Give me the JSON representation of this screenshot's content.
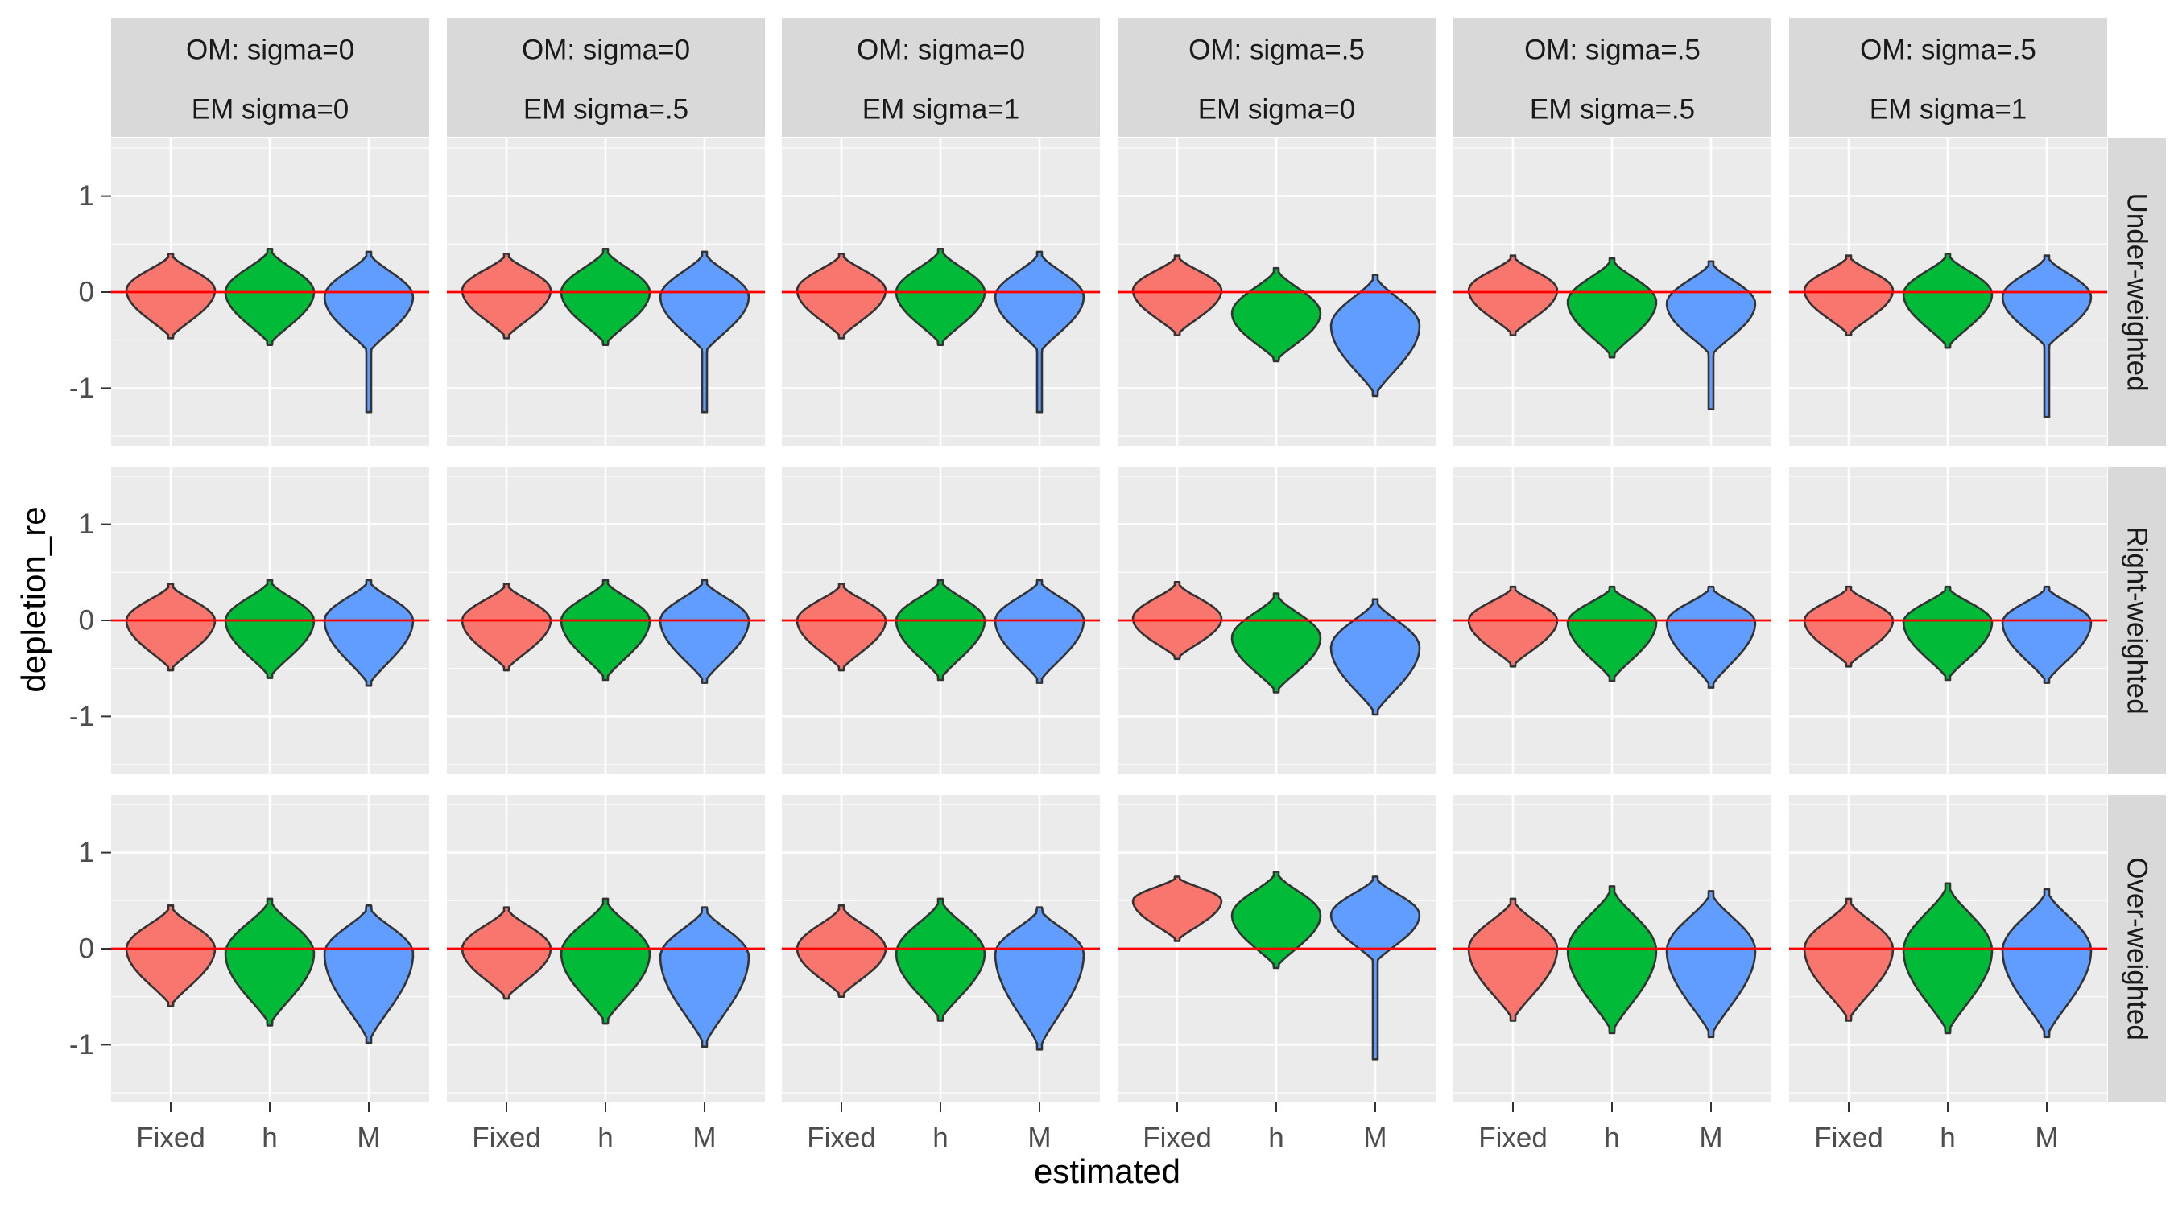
{
  "chart_data": {
    "type": "violin",
    "xlabel": "estimated",
    "ylabel": "depletion_re",
    "ylim": [
      -1.6,
      1.6
    ],
    "yticks": [
      -1,
      0,
      1
    ],
    "categories": [
      "Fixed",
      "h",
      "M"
    ],
    "reference_line": 0,
    "grid": true,
    "legend": "none",
    "colors": {
      "Fixed": "#F8766D",
      "h": "#00BA38",
      "M": "#619CFF",
      "reference": "#FF0000",
      "panel_bg": "#EBEBEB",
      "strip_bg": "#D9D9D9"
    },
    "col_facets": [
      {
        "om": "OM: sigma=0",
        "em": "EM sigma=0"
      },
      {
        "om": "OM: sigma=0",
        "em": "EM sigma=.5"
      },
      {
        "om": "OM: sigma=0",
        "em": "EM sigma=1"
      },
      {
        "om": "OM: sigma=.5",
        "em": "EM sigma=0"
      },
      {
        "om": "OM: sigma=.5",
        "em": "EM sigma=.5"
      },
      {
        "om": "OM: sigma=.5",
        "em": "EM sigma=1"
      }
    ],
    "row_facets": [
      "Under-weighted",
      "Right-weighted",
      "Over-weighted"
    ],
    "violins": [
      [
        [
          {
            "min": -0.48,
            "max": 0.4,
            "center": 0.02,
            "tail": false
          },
          {
            "min": -0.55,
            "max": 0.45,
            "center": 0.0,
            "tail": false
          },
          {
            "min": -1.25,
            "max": 0.42,
            "center": -0.05,
            "tail": true
          }
        ],
        [
          {
            "min": -0.48,
            "max": 0.4,
            "center": 0.02,
            "tail": false
          },
          {
            "min": -0.55,
            "max": 0.45,
            "center": 0.0,
            "tail": false
          },
          {
            "min": -1.25,
            "max": 0.42,
            "center": -0.05,
            "tail": true
          }
        ],
        [
          {
            "min": -0.48,
            "max": 0.4,
            "center": 0.02,
            "tail": false
          },
          {
            "min": -0.55,
            "max": 0.45,
            "center": 0.0,
            "tail": false
          },
          {
            "min": -1.25,
            "max": 0.42,
            "center": -0.05,
            "tail": true
          }
        ],
        [
          {
            "min": -0.45,
            "max": 0.38,
            "center": 0.02,
            "tail": false
          },
          {
            "min": -0.72,
            "max": 0.25,
            "center": -0.22,
            "tail": false
          },
          {
            "min": -1.08,
            "max": 0.18,
            "center": -0.35,
            "tail": false
          }
        ],
        [
          {
            "min": -0.45,
            "max": 0.38,
            "center": 0.02,
            "tail": false
          },
          {
            "min": -0.68,
            "max": 0.35,
            "center": -0.1,
            "tail": false
          },
          {
            "min": -1.22,
            "max": 0.32,
            "center": -0.12,
            "tail": true
          }
        ],
        [
          {
            "min": -0.45,
            "max": 0.38,
            "center": 0.02,
            "tail": false
          },
          {
            "min": -0.58,
            "max": 0.4,
            "center": -0.02,
            "tail": false
          },
          {
            "min": -1.3,
            "max": 0.38,
            "center": -0.05,
            "tail": true
          }
        ]
      ],
      [
        [
          {
            "min": -0.52,
            "max": 0.38,
            "center": 0.0,
            "tail": false
          },
          {
            "min": -0.6,
            "max": 0.42,
            "center": 0.0,
            "tail": false
          },
          {
            "min": -0.68,
            "max": 0.42,
            "center": 0.0,
            "tail": false
          }
        ],
        [
          {
            "min": -0.52,
            "max": 0.38,
            "center": 0.0,
            "tail": false
          },
          {
            "min": -0.62,
            "max": 0.42,
            "center": 0.0,
            "tail": false
          },
          {
            "min": -0.65,
            "max": 0.42,
            "center": 0.0,
            "tail": false
          }
        ],
        [
          {
            "min": -0.52,
            "max": 0.38,
            "center": 0.0,
            "tail": false
          },
          {
            "min": -0.62,
            "max": 0.42,
            "center": 0.0,
            "tail": false
          },
          {
            "min": -0.65,
            "max": 0.42,
            "center": 0.0,
            "tail": false
          }
        ],
        [
          {
            "min": -0.4,
            "max": 0.4,
            "center": 0.02,
            "tail": false
          },
          {
            "min": -0.75,
            "max": 0.28,
            "center": -0.18,
            "tail": false
          },
          {
            "min": -0.98,
            "max": 0.22,
            "center": -0.28,
            "tail": false
          }
        ],
        [
          {
            "min": -0.48,
            "max": 0.35,
            "center": 0.0,
            "tail": false
          },
          {
            "min": -0.63,
            "max": 0.35,
            "center": -0.02,
            "tail": false
          },
          {
            "min": -0.7,
            "max": 0.35,
            "center": -0.02,
            "tail": false
          }
        ],
        [
          {
            "min": -0.48,
            "max": 0.35,
            "center": 0.0,
            "tail": false
          },
          {
            "min": -0.62,
            "max": 0.35,
            "center": -0.02,
            "tail": false
          },
          {
            "min": -0.65,
            "max": 0.35,
            "center": -0.02,
            "tail": false
          }
        ]
      ],
      [
        [
          {
            "min": -0.6,
            "max": 0.45,
            "center": 0.0,
            "tail": false
          },
          {
            "min": -0.8,
            "max": 0.52,
            "center": -0.05,
            "tail": false
          },
          {
            "min": -0.98,
            "max": 0.45,
            "center": -0.05,
            "tail": false
          }
        ],
        [
          {
            "min": -0.52,
            "max": 0.43,
            "center": 0.0,
            "tail": false
          },
          {
            "min": -0.78,
            "max": 0.52,
            "center": -0.05,
            "tail": false
          },
          {
            "min": -1.02,
            "max": 0.43,
            "center": -0.08,
            "tail": false
          }
        ],
        [
          {
            "min": -0.5,
            "max": 0.45,
            "center": 0.0,
            "tail": false
          },
          {
            "min": -0.75,
            "max": 0.52,
            "center": -0.05,
            "tail": false
          },
          {
            "min": -1.05,
            "max": 0.43,
            "center": -0.05,
            "tail": false
          }
        ],
        [
          {
            "min": 0.08,
            "max": 0.75,
            "center": 0.5,
            "tail": false
          },
          {
            "min": -0.2,
            "max": 0.8,
            "center": 0.35,
            "tail": false
          },
          {
            "min": -1.15,
            "max": 0.75,
            "center": 0.35,
            "tail": true
          }
        ],
        [
          {
            "min": -0.75,
            "max": 0.52,
            "center": 0.0,
            "tail": false
          },
          {
            "min": -0.88,
            "max": 0.65,
            "center": -0.02,
            "tail": false
          },
          {
            "min": -0.92,
            "max": 0.6,
            "center": -0.02,
            "tail": false
          }
        ],
        [
          {
            "min": -0.75,
            "max": 0.52,
            "center": 0.0,
            "tail": false
          },
          {
            "min": -0.88,
            "max": 0.68,
            "center": -0.02,
            "tail": false
          },
          {
            "min": -0.92,
            "max": 0.62,
            "center": -0.02,
            "tail": false
          }
        ]
      ]
    ]
  }
}
